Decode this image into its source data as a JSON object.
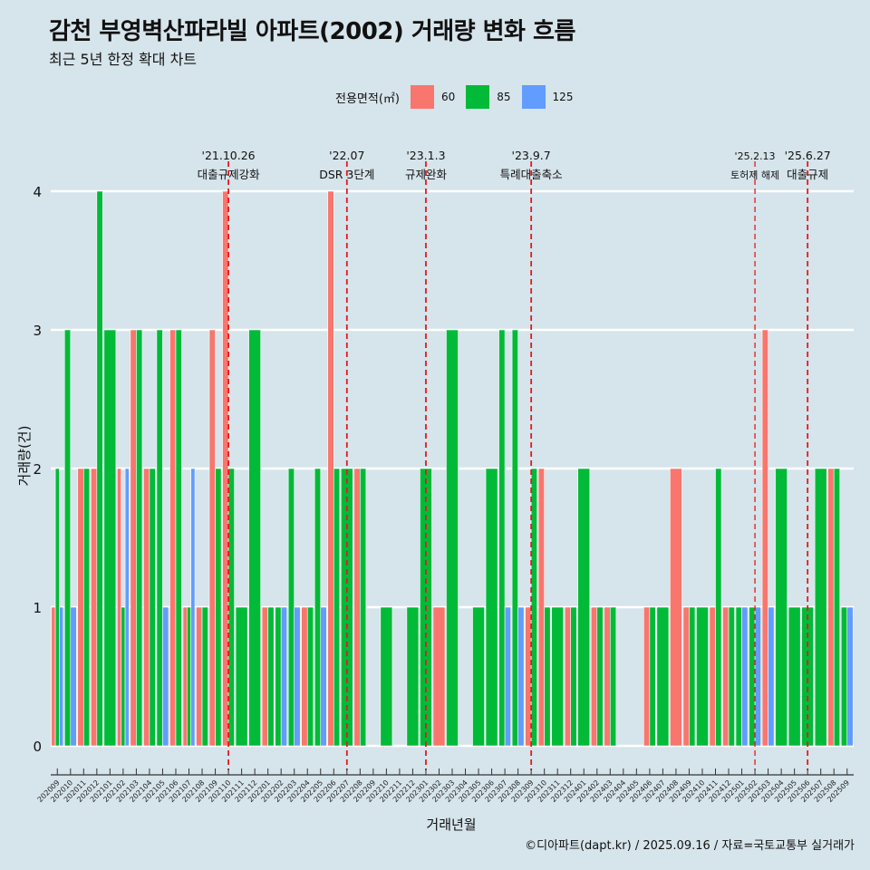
{
  "title": "감천 부영벽산파라빌 아파트(2002) 거래량 변화 흐름",
  "subtitle": "최근 5년 한정 확대 차트",
  "caption": "©디아파트(dapt.kr) / 2025.09.16 / 자료=국토교통부 실거래가",
  "legend": {
    "title": "전용면적(㎡)",
    "items": [
      {
        "label": "60",
        "color": "#F8766D"
      },
      {
        "label": "85",
        "color": "#00BA38"
      },
      {
        "label": "125",
        "color": "#619CFF"
      }
    ]
  },
  "colors": {
    "background": "#d6e4eb",
    "grid": "#ffffff",
    "event_line": "#e31a1c"
  },
  "chart_data": {
    "type": "bar",
    "xlabel": "거래년월",
    "ylabel": "거래량(건)",
    "ylim": [
      0,
      4
    ],
    "yticks": [
      0,
      1,
      2,
      3,
      4
    ],
    "categories": [
      "202009",
      "202010",
      "202011",
      "202012",
      "202101",
      "202102",
      "202103",
      "202104",
      "202105",
      "202106",
      "202107",
      "202108",
      "202109",
      "202110",
      "202111",
      "202112",
      "202201",
      "202202",
      "202203",
      "202204",
      "202205",
      "202206",
      "202207",
      "202208",
      "202209",
      "202210",
      "202211",
      "202212",
      "202301",
      "202302",
      "202303",
      "202304",
      "202305",
      "202306",
      "202307",
      "202308",
      "202309",
      "202310",
      "202311",
      "202312",
      "202401",
      "202402",
      "202403",
      "202404",
      "202405",
      "202406",
      "202407",
      "202408",
      "202409",
      "202410",
      "202411",
      "202412",
      "202501",
      "202502",
      "202503",
      "202504",
      "202505",
      "202506",
      "202507",
      "202508",
      "202509"
    ],
    "series": [
      {
        "name": "60",
        "color": "#F8766D",
        "values": [
          1,
          0,
          2,
          2,
          0,
          2,
          3,
          2,
          0,
          3,
          1,
          1,
          3,
          4,
          0,
          0,
          1,
          0,
          0,
          1,
          0,
          4,
          0,
          2,
          0,
          0,
          0,
          0,
          0,
          1,
          0,
          0,
          0,
          0,
          0,
          0,
          1,
          2,
          0,
          1,
          0,
          1,
          1,
          0,
          0,
          1,
          0,
          2,
          1,
          0,
          1,
          1,
          0,
          0,
          3,
          0,
          0,
          0,
          0,
          2,
          0
        ]
      },
      {
        "name": "85",
        "color": "#00BA38",
        "values": [
          2,
          3,
          2,
          4,
          3,
          1,
          3,
          2,
          3,
          3,
          1,
          1,
          2,
          2,
          1,
          3,
          1,
          1,
          2,
          1,
          2,
          2,
          2,
          2,
          0,
          1,
          0,
          1,
          2,
          0,
          3,
          0,
          1,
          2,
          3,
          3,
          2,
          1,
          1,
          1,
          2,
          1,
          1,
          0,
          0,
          1,
          1,
          0,
          1,
          1,
          2,
          1,
          1,
          1,
          0,
          2,
          1,
          1,
          2,
          2,
          1
        ]
      },
      {
        "name": "125",
        "color": "#619CFF",
        "values": [
          1,
          1,
          0,
          0,
          0,
          2,
          0,
          0,
          1,
          0,
          2,
          0,
          0,
          0,
          0,
          0,
          0,
          1,
          1,
          0,
          1,
          0,
          0,
          0,
          0,
          0,
          0,
          0,
          0,
          0,
          0,
          0,
          0,
          0,
          1,
          1,
          0,
          0,
          0,
          0,
          0,
          0,
          0,
          0,
          0,
          0,
          0,
          0,
          0,
          0,
          0,
          0,
          1,
          1,
          1,
          0,
          0,
          0,
          0,
          0,
          1
        ]
      }
    ],
    "events": [
      {
        "line1": "'21.10.26",
        "line2": "대출규제강화",
        "at": "202110"
      },
      {
        "line1": "'22.07",
        "line2": "DSR 3단계",
        "at": "202207"
      },
      {
        "line1": "'23.1.3",
        "line2": "규제완화",
        "at": "202301"
      },
      {
        "line1": "'23.9.7",
        "line2": "특례대출축소",
        "at": "202309"
      },
      {
        "line1": "'25.2.13",
        "line2": "토허제 해제",
        "at": "202502"
      },
      {
        "line1": "'25.6.27",
        "line2": "대출규제",
        "at": "202506"
      }
    ]
  }
}
